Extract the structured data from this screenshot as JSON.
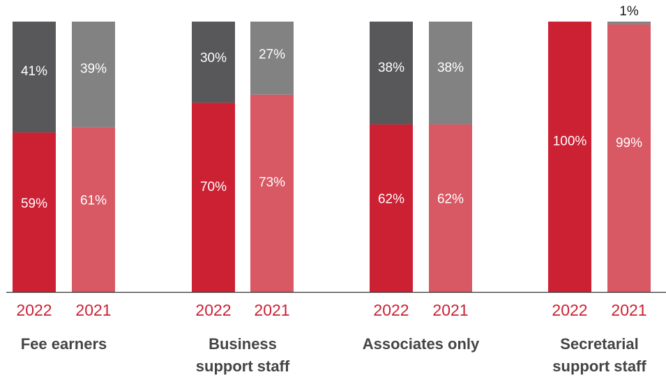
{
  "colors": {
    "bar_2022_bottom": "#cc2033",
    "bar_2022_top": "#58585a",
    "bar_2021_bottom": "#d85864",
    "bar_2021_top": "#828282",
    "year_label": "#cc2033",
    "group_label": "#444444",
    "baseline": "#333333"
  },
  "chart_data": {
    "type": "bar",
    "stacked": true,
    "normalized": true,
    "ylim": [
      0,
      100
    ],
    "groups": [
      {
        "name": "Fee earners",
        "name_lines": [
          "Fee earners"
        ],
        "bars": [
          {
            "year": "2022",
            "bottom": 59,
            "top": 41,
            "bottom_label": "59%",
            "top_label": "41%"
          },
          {
            "year": "2021",
            "bottom": 61,
            "top": 39,
            "bottom_label": "61%",
            "top_label": "39%"
          }
        ]
      },
      {
        "name": "Business support staff",
        "name_lines": [
          "Business",
          "support staff"
        ],
        "bars": [
          {
            "year": "2022",
            "bottom": 70,
            "top": 30,
            "bottom_label": "70%",
            "top_label": "30%"
          },
          {
            "year": "2021",
            "bottom": 73,
            "top": 27,
            "bottom_label": "73%",
            "top_label": "27%"
          }
        ]
      },
      {
        "name": "Associates only",
        "name_lines": [
          "Associates only"
        ],
        "bars": [
          {
            "year": "2022",
            "bottom": 62,
            "top": 38,
            "bottom_label": "62%",
            "top_label": "38%"
          },
          {
            "year": "2021",
            "bottom": 62,
            "top": 38,
            "bottom_label": "62%",
            "top_label": "38%"
          }
        ]
      },
      {
        "name": "Secretarial support staff",
        "name_lines": [
          "Secretarial",
          "support staff"
        ],
        "bars": [
          {
            "year": "2022",
            "bottom": 100,
            "top": 0,
            "bottom_label": "100%",
            "top_label": ""
          },
          {
            "year": "2021",
            "bottom": 99,
            "top": 1,
            "bottom_label": "99%",
            "top_label": "1%"
          }
        ]
      }
    ]
  }
}
